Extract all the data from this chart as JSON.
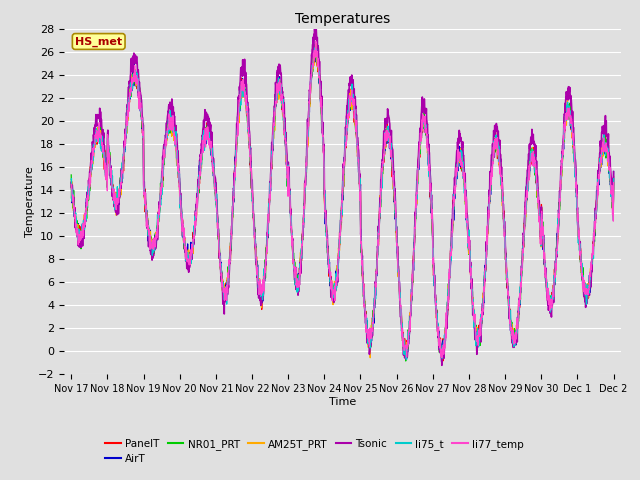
{
  "title": "Temperatures",
  "xlabel": "Time",
  "ylabel": "Temperature",
  "ylim": [
    -2,
    28
  ],
  "yticks": [
    -2,
    0,
    2,
    4,
    6,
    8,
    10,
    12,
    14,
    16,
    18,
    20,
    22,
    24,
    26,
    28
  ],
  "series": [
    "PanelT",
    "AirT",
    "NR01_PRT",
    "AM25T_PRT",
    "Tsonic",
    "li75_t",
    "li77_temp"
  ],
  "colors": [
    "#ff0000",
    "#0000cc",
    "#00cc00",
    "#ffaa00",
    "#aa00aa",
    "#00cccc",
    "#ff44cc"
  ],
  "annotation_text": "HS_met",
  "annotation_color": "#aa0000",
  "annotation_bg": "#ffff99",
  "annotation_border": "#aa8800",
  "bg_color": "#e0e0e0",
  "grid_color": "#ffffff",
  "xtick_labels": [
    "Nov 17",
    "Nov 18",
    "Nov 19",
    "Nov 20",
    "Nov 21",
    "Nov 22",
    "Nov 23",
    "Nov 24",
    "Nov 25",
    "Nov 26",
    "Nov 27",
    "Nov 28",
    "Nov 29",
    "Nov 30",
    "Dec 1",
    "Dec 2"
  ],
  "xtick_positions": [
    0,
    1,
    2,
    3,
    4,
    5,
    6,
    7,
    8,
    9,
    10,
    11,
    12,
    13,
    14,
    15
  ]
}
